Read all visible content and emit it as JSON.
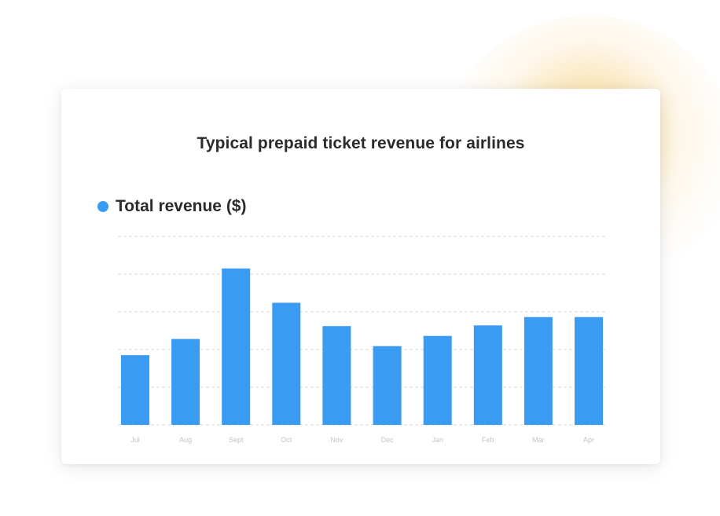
{
  "chart_data": {
    "type": "bar",
    "title": "Typical prepaid ticket revenue for airlines",
    "series": [
      {
        "name": "Total revenue ($)",
        "values": [
          1.85,
          2.28,
          4.15,
          3.24,
          2.62,
          2.09,
          2.36,
          2.64,
          2.86,
          2.86
        ]
      }
    ],
    "categories": [
      "Jul",
      "Aug",
      "Sept",
      "Oct",
      "Nov",
      "Dec",
      "Jan",
      "Feb",
      "Mar",
      "Apr"
    ],
    "ylim": [
      0,
      5
    ],
    "grid": true,
    "legend_position": "top-left",
    "colors": {
      "bar": "#3a9bf2",
      "grid": "#d9d9d9",
      "glow": "#f0aa28"
    }
  }
}
